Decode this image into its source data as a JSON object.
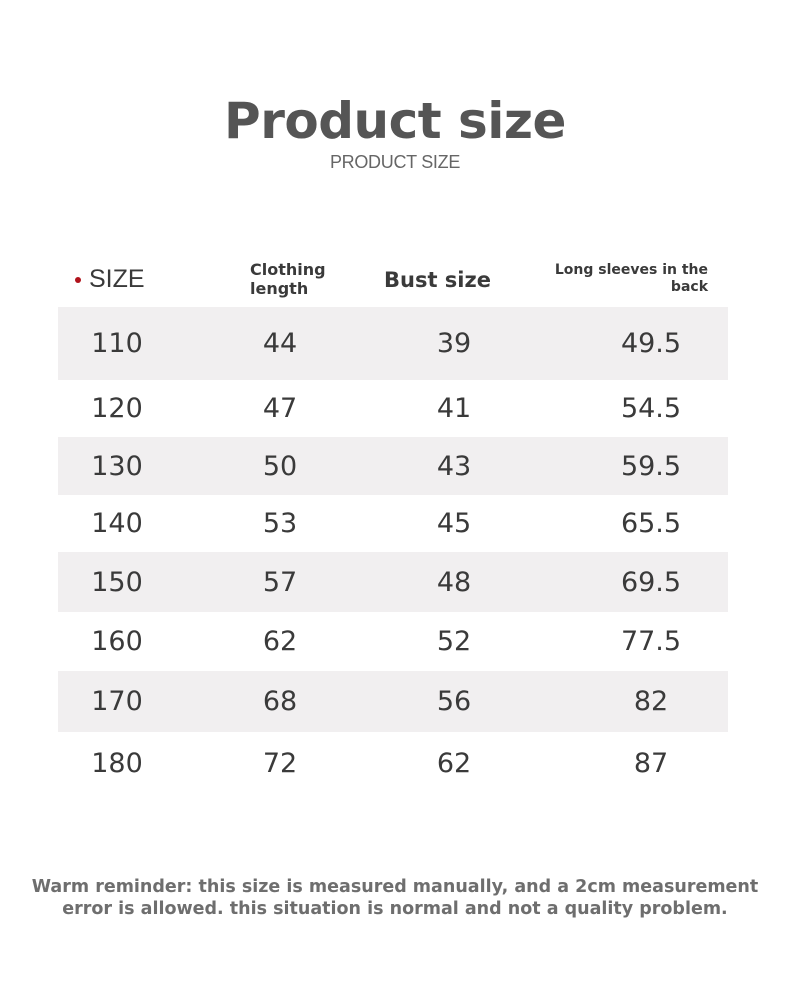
{
  "title": "Product size",
  "subtitle": "PRODUCT SIZE",
  "table": {
    "headers": {
      "size": "SIZE",
      "clothing_length_1": "Clothing",
      "clothing_length_2": "length",
      "bust": "Bust size",
      "sleeve_1": "Long sleeves in the",
      "sleeve_2": "back"
    },
    "rows": [
      {
        "size": "110",
        "length": "44",
        "bust": "39",
        "sleeve": "49.5"
      },
      {
        "size": "120",
        "length": "47",
        "bust": "41",
        "sleeve": "54.5"
      },
      {
        "size": "130",
        "length": "50",
        "bust": "43",
        "sleeve": "59.5"
      },
      {
        "size": "140",
        "length": "53",
        "bust": "45",
        "sleeve": "65.5"
      },
      {
        "size": "150",
        "length": "57",
        "bust": "48",
        "sleeve": "69.5"
      },
      {
        "size": "160",
        "length": "62",
        "bust": "52",
        "sleeve": "77.5"
      },
      {
        "size": "170",
        "length": "68",
        "bust": "56",
        "sleeve": "82"
      },
      {
        "size": "180",
        "length": "72",
        "bust": "62",
        "sleeve": "87"
      }
    ]
  },
  "note": {
    "line1": "Warm reminder: this size is measured manually, and a 2cm measurement",
    "line2": "error is allowed. this situation is normal and not a quality problem."
  },
  "colors": {
    "accent_dot": "#b0121b",
    "row_shade": "#f1eff0",
    "text": "#3a3a3a"
  }
}
